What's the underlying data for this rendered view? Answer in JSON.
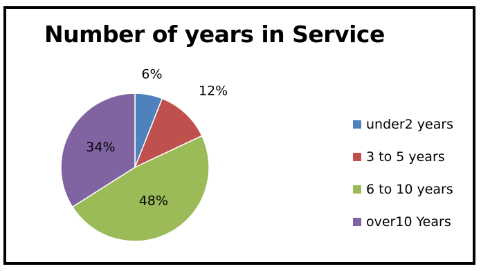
{
  "chart_data": {
    "type": "pie",
    "title": "Number of years in Service",
    "slices": [
      {
        "label": "under2 years",
        "value": 6,
        "data_label": "6%",
        "color": "#4F81BD"
      },
      {
        "label": "3 to 5 years",
        "value": 12,
        "data_label": "12%",
        "color": "#C0504D"
      },
      {
        "label": "6 to 10 years",
        "value": 48,
        "data_label": "48%",
        "color": "#9BBB59"
      },
      {
        "label": "over10 Years",
        "value": 34,
        "data_label": "34%",
        "color": "#8064A2"
      }
    ],
    "legend_position": "right"
  }
}
